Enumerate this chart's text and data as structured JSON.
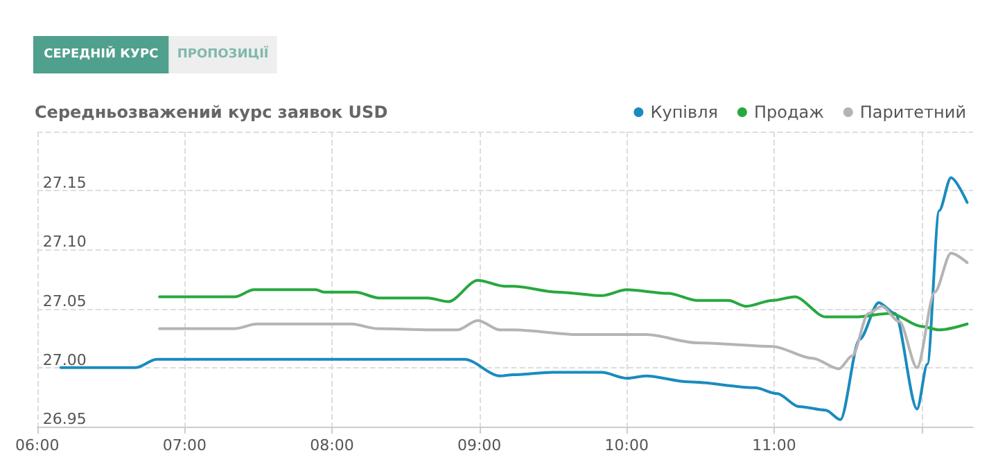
{
  "chart_data": {
    "type": "line",
    "title": "Середньозважений курс заявок USD",
    "annotations": [
      "СЕРЕДНІЙ КУРС",
      "ПРОПОЗИЦІЇ"
    ],
    "xlim": [
      6,
      12.35
    ],
    "ylim": [
      26.95,
      27.2
    ],
    "xticks": [
      {
        "value": 6,
        "label": "06:00"
      },
      {
        "value": 7,
        "label": "07:00"
      },
      {
        "value": 8,
        "label": "08:00"
      },
      {
        "value": 9,
        "label": "09:00"
      },
      {
        "value": 10,
        "label": "10:00"
      },
      {
        "value": 11,
        "label": "11:00"
      },
      {
        "value": 12,
        "label": null
      }
    ],
    "yticks": [
      {
        "value": 26.95,
        "label": "26.95"
      },
      {
        "value": 27.0,
        "label": "27.00"
      },
      {
        "value": 27.05,
        "label": "27.05"
      },
      {
        "value": 27.1,
        "label": "27.10"
      },
      {
        "value": 27.15,
        "label": "27.15"
      },
      {
        "value": 27.2,
        "label": null
      }
    ],
    "grid": true,
    "legend": "top right",
    "marker": "none",
    "line_style": "solid",
    "series": [
      {
        "name": "Купівля",
        "color": "#1a8bbf",
        "x": [
          6.16,
          6.67,
          6.81,
          8.9,
          9.14,
          9.23,
          9.5,
          9.83,
          10.0,
          10.13,
          10.42,
          10.87,
          11.02,
          11.17,
          11.35,
          11.45,
          11.58,
          11.71,
          11.82,
          11.97,
          12.04,
          12.12,
          12.2,
          12.31
        ],
        "values": [
          27.0,
          27.0,
          27.007,
          27.007,
          26.993,
          26.994,
          26.996,
          26.996,
          26.991,
          26.993,
          26.988,
          26.983,
          26.978,
          26.967,
          26.964,
          26.956,
          27.024,
          27.055,
          27.046,
          26.965,
          27.003,
          27.133,
          27.161,
          27.14
        ]
      },
      {
        "name": "Продаж",
        "color": "#27a83f",
        "x": [
          6.83,
          7.34,
          7.47,
          7.89,
          7.95,
          8.16,
          8.32,
          8.65,
          8.79,
          8.99,
          9.17,
          9.23,
          9.53,
          9.83,
          10.0,
          10.28,
          10.48,
          10.69,
          10.81,
          10.99,
          11.14,
          11.35,
          11.55,
          11.79,
          12.0,
          12.12,
          12.31
        ],
        "values": [
          27.06,
          27.06,
          27.066,
          27.066,
          27.064,
          27.064,
          27.059,
          27.059,
          27.056,
          27.074,
          27.069,
          27.069,
          27.064,
          27.061,
          27.066,
          27.063,
          27.057,
          27.057,
          27.052,
          27.057,
          27.06,
          27.043,
          27.043,
          27.046,
          27.035,
          27.032,
          27.037
        ]
      },
      {
        "name": "Паритетний",
        "color": "#b4b4b4",
        "x": [
          6.83,
          7.34,
          7.49,
          8.13,
          8.31,
          8.72,
          8.85,
          8.99,
          9.14,
          9.23,
          9.68,
          10.13,
          10.48,
          10.99,
          11.26,
          11.44,
          11.53,
          11.64,
          11.73,
          11.85,
          11.97,
          12.09,
          12.2,
          12.31
        ],
        "values": [
          27.033,
          27.033,
          27.037,
          27.037,
          27.033,
          27.032,
          27.032,
          27.04,
          27.032,
          27.032,
          27.028,
          27.028,
          27.021,
          27.018,
          27.008,
          26.999,
          27.01,
          27.046,
          27.052,
          27.039,
          27.0,
          27.064,
          27.097,
          27.089
        ]
      }
    ]
  }
}
